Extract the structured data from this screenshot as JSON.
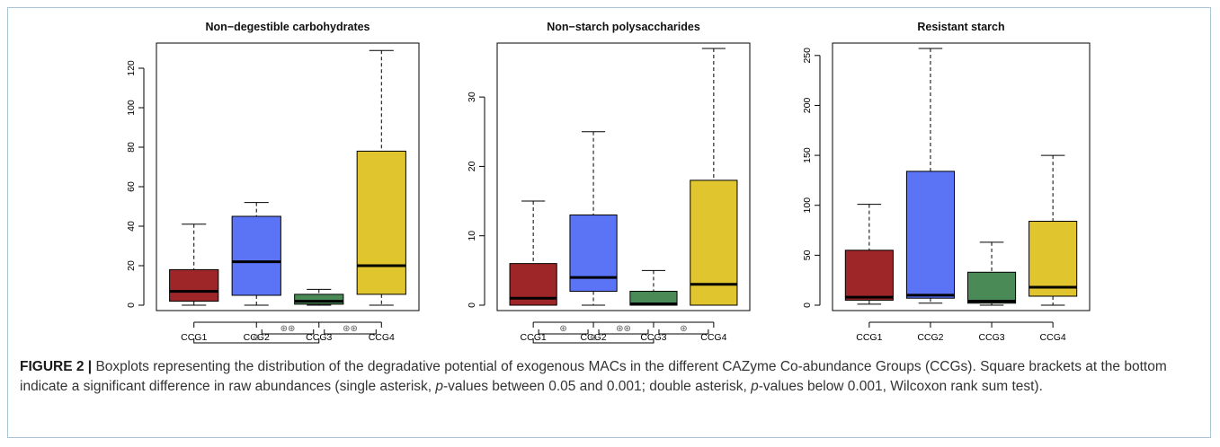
{
  "colors": {
    "CCG1": "#9e2628",
    "CCG2": "#5b73f5",
    "CCG3": "#4a8a56",
    "CCG4": "#e0c52e"
  },
  "chart_data": [
    {
      "type": "boxplot",
      "title": "Non−degestible carbohydrates",
      "categories": [
        "CCG1",
        "CCG2",
        "CCG3",
        "CCG4"
      ],
      "ylim": [
        0,
        130
      ],
      "yticks": [
        0,
        20,
        40,
        60,
        80,
        100,
        120
      ],
      "boxes": [
        {
          "whisker_low": 0,
          "q1": 2,
          "median": 7,
          "q3": 18,
          "whisker_high": 41
        },
        {
          "whisker_low": 0,
          "q1": 5,
          "median": 22,
          "q3": 45,
          "whisker_high": 52
        },
        {
          "whisker_low": 0,
          "q1": 0.5,
          "median": 2,
          "q3": 5.5,
          "whisker_high": 8
        },
        {
          "whisker_low": 0,
          "q1": 5.5,
          "median": 20,
          "q3": 78,
          "whisker_high": 129
        }
      ],
      "significance": [
        {
          "from": 1,
          "to": 2,
          "level": 2,
          "label": "⊛⊛"
        },
        {
          "from": 2,
          "to": 3,
          "level": 2,
          "label": "⊛⊛"
        },
        {
          "from": 0,
          "to": 2,
          "level": 1,
          "label": "⊛"
        }
      ]
    },
    {
      "type": "boxplot",
      "title": "Non−starch polysaccharides",
      "categories": [
        "CCG1",
        "CCG2",
        "CCG3",
        "CCG4"
      ],
      "ylim": [
        0,
        37
      ],
      "yticks": [
        0,
        10,
        20,
        30
      ],
      "boxes": [
        {
          "whisker_low": 0,
          "q1": 0,
          "median": 1,
          "q3": 6,
          "whisker_high": 15
        },
        {
          "whisker_low": 0,
          "q1": 2,
          "median": 4,
          "q3": 13,
          "whisker_high": 25
        },
        {
          "whisker_low": 0,
          "q1": 0,
          "median": 0.2,
          "q3": 2,
          "whisker_high": 5
        },
        {
          "whisker_low": 0,
          "q1": 0,
          "median": 3,
          "q3": 18,
          "whisker_high": 37
        }
      ],
      "significance": [
        {
          "from": 0,
          "to": 1,
          "level": 2,
          "label": "⊛"
        },
        {
          "from": 1,
          "to": 2,
          "level": 2,
          "label": "⊛⊛"
        },
        {
          "from": 2,
          "to": 3,
          "level": 2,
          "label": "⊛"
        },
        {
          "from": 0,
          "to": 2,
          "level": 1,
          "label": "⊛"
        }
      ]
    },
    {
      "type": "boxplot",
      "title": "Resistant starch",
      "categories": [
        "CCG1",
        "CCG2",
        "CCG3",
        "CCG4"
      ],
      "ylim": [
        0,
        257
      ],
      "yticks": [
        0,
        50,
        100,
        150,
        200,
        250
      ],
      "boxes": [
        {
          "whisker_low": 1,
          "q1": 5,
          "median": 8,
          "q3": 55,
          "whisker_high": 101
        },
        {
          "whisker_low": 2,
          "q1": 7,
          "median": 10,
          "q3": 134,
          "whisker_high": 257
        },
        {
          "whisker_low": 0,
          "q1": 2,
          "median": 4,
          "q3": 33,
          "whisker_high": 63
        },
        {
          "whisker_low": 0,
          "q1": 9,
          "median": 18,
          "q3": 84,
          "whisker_high": 150
        }
      ],
      "significance": []
    }
  ],
  "caption": {
    "label": "FIGURE 2 |",
    "text_before_p1": " Boxplots representing the distribution of the degradative potential of exogenous MACs in the different CAZyme Co-abundance Groups (CCGs). Square brackets at the bottom indicate a significant difference in raw abundances (single asterisk, ",
    "p1": "p",
    "text_between": "-values between 0.05 and 0.001; double asterisk, ",
    "p2": "p",
    "text_after_p2": "-values below 0.001, Wilcoxon rank sum test)."
  }
}
